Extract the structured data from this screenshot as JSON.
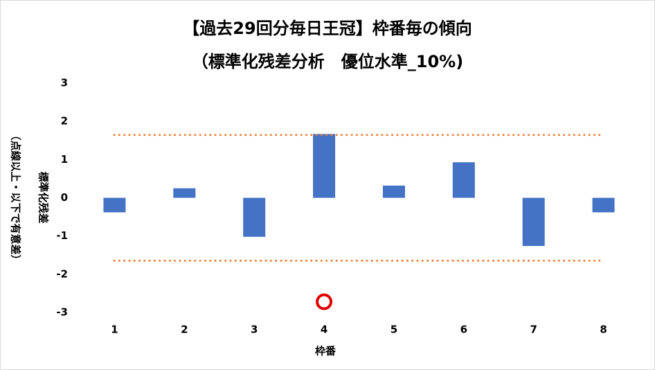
{
  "chart_data": {
    "type": "bar",
    "title": "【過去29回分毎日王冠】枠番毎の傾向",
    "subtitle": "（標準化残差分析　優位水準_10%)",
    "x_label": "枠番",
    "y_label": [
      "標準化残差",
      "（点線以上・以下で有意差）"
    ],
    "categories": [
      "1",
      "2",
      "3",
      "4",
      "5",
      "6",
      "7",
      "8"
    ],
    "values": [
      -0.38,
      0.25,
      -1.02,
      1.67,
      0.32,
      0.93,
      -1.26,
      -0.38
    ],
    "color": "#4472c4",
    "marker_series": {
      "values": [
        null,
        null,
        null,
        -2.72,
        null,
        null,
        null,
        null
      ],
      "color": "#e00000"
    },
    "reference_lines": {
      "values": [
        1.645,
        -1.645
      ],
      "color": "#ed7d31"
    },
    "ylim": [
      -3,
      3
    ],
    "yticks": [
      -3,
      -2,
      -1,
      0,
      1,
      2,
      3
    ],
    "grid": false
  }
}
